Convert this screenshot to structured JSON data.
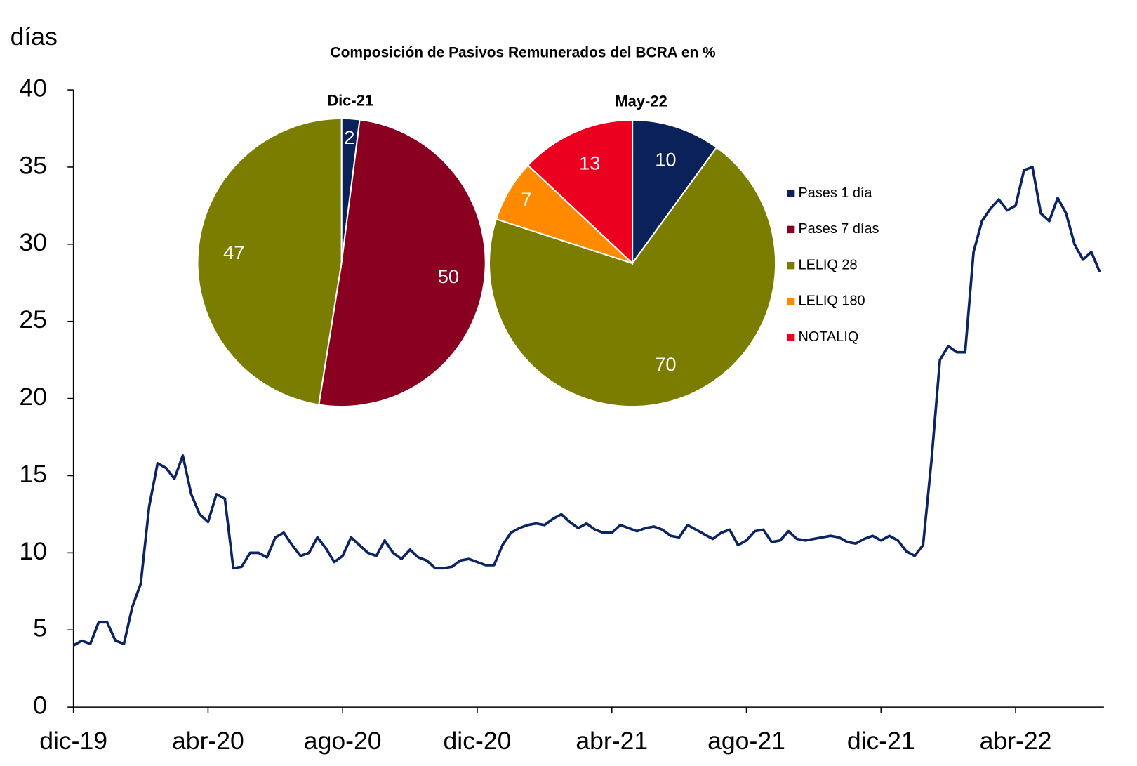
{
  "chart_data": [
    {
      "type": "line",
      "y_label": "días",
      "categories": [
        "dic-19",
        null,
        null,
        null,
        null,
        null,
        null,
        null,
        null,
        null,
        null,
        null,
        null,
        null,
        null,
        null,
        "abr-20",
        null,
        null,
        null,
        null,
        null,
        null,
        null,
        null,
        null,
        null,
        null,
        null,
        null,
        null,
        null,
        "ago-20",
        null,
        null,
        null,
        null,
        null,
        null,
        null,
        null,
        null,
        null,
        null,
        null,
        null,
        null,
        null,
        "dic-20",
        null,
        null,
        null,
        null,
        null,
        null,
        null,
        null,
        null,
        null,
        null,
        null,
        null,
        null,
        null,
        "abr-21",
        null,
        null,
        null,
        null,
        null,
        null,
        null,
        null,
        null,
        null,
        null,
        null,
        null,
        null,
        null,
        "ago-21",
        null,
        null,
        null,
        null,
        null,
        null,
        null,
        null,
        null,
        null,
        null,
        null,
        null,
        null,
        null,
        "dic-21",
        null,
        null,
        null,
        null,
        null,
        null,
        null,
        null,
        null,
        null,
        null,
        null,
        null,
        null,
        null,
        "abr-22",
        null,
        null,
        null,
        null,
        null,
        null,
        null,
        null,
        null,
        null
      ],
      "values": [
        4.0,
        4.3,
        4.1,
        5.5,
        5.5,
        4.3,
        4.1,
        6.5,
        8.0,
        13.0,
        15.8,
        15.5,
        14.8,
        16.3,
        13.8,
        12.5,
        12.0,
        13.8,
        13.5,
        9.0,
        9.1,
        10.0,
        10.0,
        9.7,
        11.0,
        11.3,
        10.5,
        9.8,
        10.0,
        11.0,
        10.3,
        9.4,
        9.8,
        11.0,
        10.5,
        10.0,
        9.8,
        10.8,
        10.0,
        9.6,
        10.2,
        9.7,
        9.5,
        9.0,
        9.0,
        9.1,
        9.5,
        9.6,
        9.4,
        9.2,
        9.2,
        10.5,
        11.3,
        11.6,
        11.8,
        11.9,
        11.8,
        12.2,
        12.5,
        12.0,
        11.6,
        11.9,
        11.5,
        11.3,
        11.3,
        11.8,
        11.6,
        11.4,
        11.6,
        11.7,
        11.5,
        11.1,
        11.0,
        11.8,
        11.5,
        11.2,
        10.9,
        11.3,
        11.5,
        10.5,
        10.8,
        11.4,
        11.5,
        10.7,
        10.8,
        11.4,
        10.9,
        10.8,
        10.9,
        11.0,
        11.1,
        11.0,
        10.7,
        10.6,
        10.9,
        11.1,
        10.8,
        11.1,
        10.8,
        10.1,
        9.8,
        10.5,
        16.0,
        22.5,
        23.4,
        23.0,
        23.0,
        29.5,
        31.5,
        32.3,
        32.9,
        32.2,
        32.5,
        34.8,
        35.0,
        32.0,
        31.5,
        33.0,
        32.0,
        30.0,
        29.0,
        29.5,
        28.2
      ],
      "color": "#0c2461",
      "ylim": [
        0,
        40
      ],
      "yticks": [
        0,
        5,
        10,
        15,
        20,
        25,
        30,
        35,
        40
      ],
      "grid": false
    },
    {
      "type": "pie",
      "title": "Composición de Pasivos Remunerados del BCRA en %",
      "categories": [
        "Pases 1 día",
        "Pases 7 días",
        "LELIQ 28",
        "LELIQ 180",
        "NOTALIQ"
      ],
      "colors": [
        "#0b2159",
        "#8a0020",
        "#7a7d00",
        "#ff8a00",
        "#ec0020"
      ],
      "series": [
        {
          "name": "Dic-21",
          "values": [
            2,
            50,
            47,
            0,
            0
          ]
        },
        {
          "name": "May-22",
          "values": [
            10,
            0,
            70,
            7,
            13
          ]
        }
      ]
    }
  ]
}
